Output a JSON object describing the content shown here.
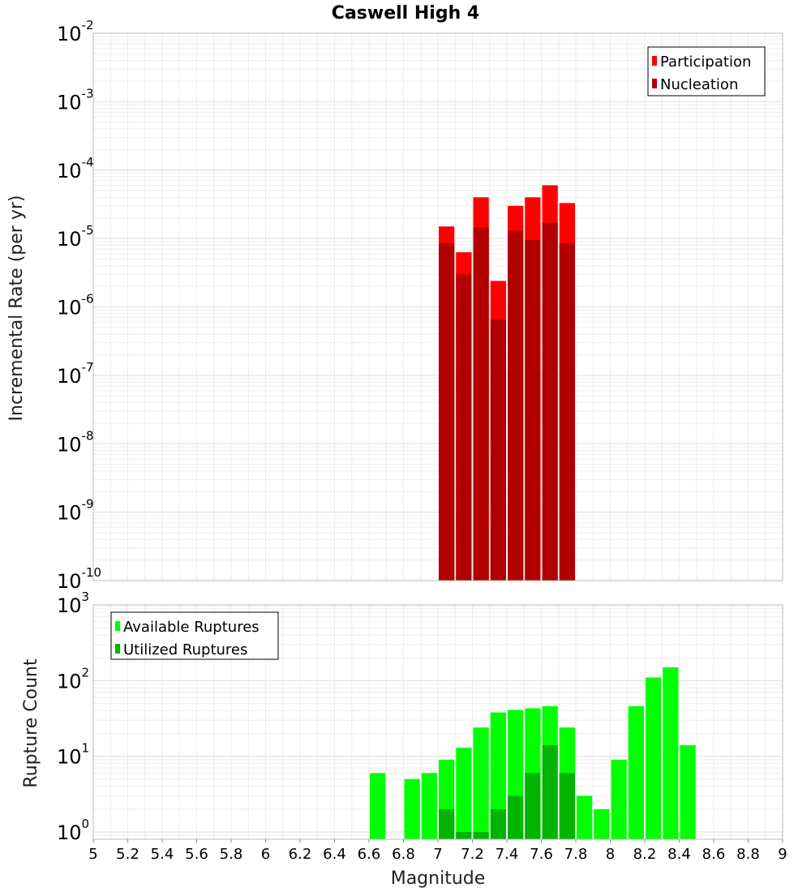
{
  "chart_data": [
    {
      "type": "bar",
      "title": "Caswell High 4",
      "ylabel": "Incremental Rate (per yr)",
      "xlabel": "",
      "yscale": "log",
      "ylim": [
        1e-10,
        0.01
      ],
      "xlim": [
        5,
        9
      ],
      "grid": true,
      "legend_position": "top-right",
      "bin_width": 0.1,
      "x": [
        7.0,
        7.1,
        7.2,
        7.3,
        7.4,
        7.5,
        7.6,
        7.7
      ],
      "series": [
        {
          "name": "Participation",
          "color": "#ff0000",
          "values": [
            1.5e-05,
            6.3e-06,
            4e-05,
            2.4e-06,
            3e-05,
            4e-05,
            6e-05,
            3.3e-05
          ]
        },
        {
          "name": "Nucleation",
          "color": "#b20000",
          "values": [
            8.5e-06,
            3e-06,
            1.45e-05,
            6.5e-07,
            1.3e-05,
            9.5e-06,
            1.7e-05,
            8.5e-06
          ]
        }
      ]
    },
    {
      "type": "bar",
      "title": "",
      "ylabel": "Rupture Count",
      "xlabel": "Magnitude",
      "yscale": "log",
      "ylim": [
        0.8,
        1000
      ],
      "xlim": [
        5,
        9
      ],
      "grid": true,
      "legend_position": "top-left",
      "bin_width": 0.1,
      "x": [
        6.6,
        6.8,
        6.9,
        7.0,
        7.1,
        7.2,
        7.3,
        7.4,
        7.5,
        7.6,
        7.7,
        7.8,
        7.9,
        8.0,
        8.1,
        8.2,
        8.3,
        8.4
      ],
      "series": [
        {
          "name": "Available Ruptures",
          "color": "#00ff00",
          "values": [
            6,
            5,
            6,
            9,
            13,
            24,
            38,
            41,
            43,
            46,
            24,
            3,
            2,
            9,
            46,
            110,
            150,
            14
          ]
        },
        {
          "name": "Utilized Ruptures",
          "color": "#00b400",
          "values": [
            0,
            0,
            0,
            2,
            1,
            1,
            2,
            3,
            6,
            14,
            6,
            0,
            0,
            0,
            0,
            0,
            0,
            0
          ]
        }
      ],
      "x_ticks": [
        "5",
        "5.2",
        "5.4",
        "5.6",
        "5.8",
        "6",
        "6.2",
        "6.4",
        "6.6",
        "6.8",
        "7",
        "7.2",
        "7.4",
        "7.6",
        "7.8",
        "8",
        "8.2",
        "8.4",
        "8.6",
        "8.8",
        "9"
      ]
    }
  ]
}
